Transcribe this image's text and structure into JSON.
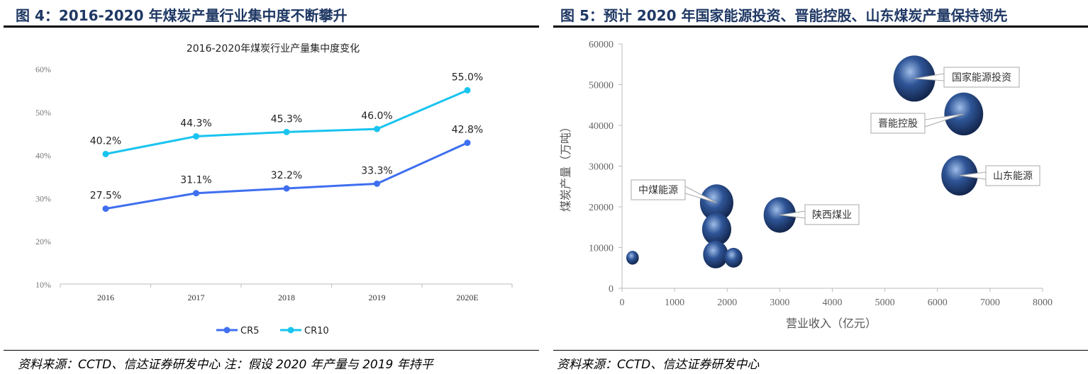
{
  "left": {
    "figure_title": "图 4：2016-2020 年煤炭产量行业集中度不断攀升",
    "source": "资料来源：CCTD、信达证券研发中心 注：假设 2020 年产量与 2019 年持平"
  },
  "right": {
    "figure_title": "图 5：预计 2020 年国家能源投资、晋能控股、山东煤炭产量保持领先",
    "source": "资料来源：CCTD、信达证券研发中心"
  },
  "chart_data": [
    {
      "type": "line",
      "title": "2016-2020年煤炭行业产量集中度变化",
      "categories": [
        "2016",
        "2017",
        "2018",
        "2019",
        "2020E"
      ],
      "series": [
        {
          "name": "CR5",
          "values": [
            27.5,
            31.1,
            32.2,
            33.3,
            42.8
          ],
          "labels": [
            "27.5%",
            "31.1%",
            "32.2%",
            "33.3%",
            "42.8%"
          ],
          "color": "#3f6ff0"
        },
        {
          "name": "CR10",
          "values": [
            40.2,
            44.3,
            45.3,
            46.0,
            55.0
          ],
          "labels": [
            "40.2%",
            "44.3%",
            "45.3%",
            "46.0%",
            "55.0%"
          ],
          "color": "#19c4ef"
        }
      ],
      "ylim": [
        10,
        60
      ],
      "yticks": [
        "10%",
        "20%",
        "30%",
        "40%",
        "50%",
        "60%"
      ],
      "grid": false,
      "legend": "bottom"
    },
    {
      "type": "bubble",
      "xlabel": "营业收入（亿元）",
      "ylabel": "煤炭产量（万吨）",
      "xlim": [
        0,
        8000
      ],
      "ylim": [
        0,
        60000
      ],
      "xticks": [
        "0",
        "1000",
        "2000",
        "3000",
        "4000",
        "5000",
        "6000",
        "7000",
        "8000"
      ],
      "yticks": [
        "0",
        "10000",
        "20000",
        "30000",
        "40000",
        "50000",
        "60000"
      ],
      "bubble_color": "#2f5597",
      "points": [
        {
          "x": 200,
          "y": 7500,
          "size": 0.3,
          "label": ""
        },
        {
          "x": 1800,
          "y": 21000,
          "size": 0.8,
          "label": "中煤能源"
        },
        {
          "x": 1800,
          "y": 14500,
          "size": 0.7,
          "label": ""
        },
        {
          "x": 1780,
          "y": 8300,
          "size": 0.6,
          "label": ""
        },
        {
          "x": 2120,
          "y": 7500,
          "size": 0.43,
          "label": ""
        },
        {
          "x": 3000,
          "y": 18000,
          "size": 0.77,
          "label": "陕西煤业"
        },
        {
          "x": 5560,
          "y": 51500,
          "size": 1.0,
          "label": "国家能源投资"
        },
        {
          "x": 6500,
          "y": 42800,
          "size": 0.93,
          "label": "晋能控股"
        },
        {
          "x": 6420,
          "y": 27700,
          "size": 0.87,
          "label": "山东能源"
        }
      ]
    }
  ]
}
